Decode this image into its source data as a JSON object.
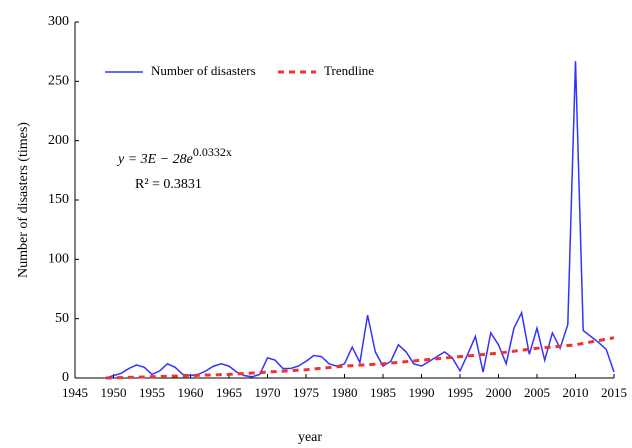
{
  "chart_data": {
    "type": "line",
    "x_label": "year",
    "y_label": "Number of disasters (times)",
    "xlim": [
      1945,
      2015
    ],
    "xticks": [
      1945,
      1950,
      1955,
      1960,
      1965,
      1970,
      1975,
      1980,
      1985,
      1990,
      1995,
      2000,
      2005,
      2010,
      2015
    ],
    "ylim": [
      0,
      300
    ],
    "yticks": [
      0,
      50,
      100,
      150,
      200,
      250,
      300
    ],
    "grid": false,
    "legend": "top-left",
    "equation": "y = 3E − 28e",
    "equation_exponent": "0.0332x",
    "r_squared": "R² = 0.3831",
    "series": [
      {
        "name": "Number of disasters",
        "color": "#3333ff",
        "dashed": false,
        "x": [
          1949,
          1950,
          1951,
          1952,
          1953,
          1954,
          1955,
          1956,
          1957,
          1958,
          1959,
          1960,
          1961,
          1962,
          1963,
          1964,
          1965,
          1966,
          1967,
          1968,
          1969,
          1970,
          1971,
          1972,
          1973,
          1974,
          1975,
          1976,
          1977,
          1978,
          1979,
          1980,
          1981,
          1982,
          1983,
          1984,
          1985,
          1986,
          1987,
          1988,
          1989,
          1990,
          1991,
          1992,
          1993,
          1994,
          1995,
          1996,
          1997,
          1998,
          1999,
          2000,
          2001,
          2002,
          2003,
          2004,
          2005,
          2006,
          2007,
          2008,
          2009,
          2010,
          2011,
          2012,
          2013,
          2014,
          2015
        ],
        "values": [
          0,
          2,
          4,
          8,
          11,
          9,
          3,
          6,
          12,
          9,
          3,
          2,
          3,
          6,
          10,
          12,
          10,
          5,
          2,
          1,
          3,
          17,
          15,
          8,
          8,
          10,
          14,
          19,
          18,
          12,
          10,
          12,
          26,
          13,
          53,
          22,
          10,
          14,
          28,
          22,
          12,
          10,
          14,
          18,
          22,
          17,
          6,
          20,
          35,
          5,
          38,
          28,
          12,
          42,
          55,
          20,
          42,
          15,
          38,
          25,
          45,
          267,
          40,
          35,
          30,
          24,
          5
        ]
      },
      {
        "name": "Trendline",
        "color": "#ee3333",
        "dashed": true,
        "x": [
          1949,
          1955,
          1960,
          1965,
          1970,
          1975,
          1980,
          1985,
          1990,
          1995,
          2000,
          2005,
          2010,
          2015
        ],
        "values": [
          0,
          1,
          2,
          3,
          5,
          7,
          10,
          12,
          15,
          18,
          21,
          25,
          28,
          34
        ]
      }
    ]
  }
}
